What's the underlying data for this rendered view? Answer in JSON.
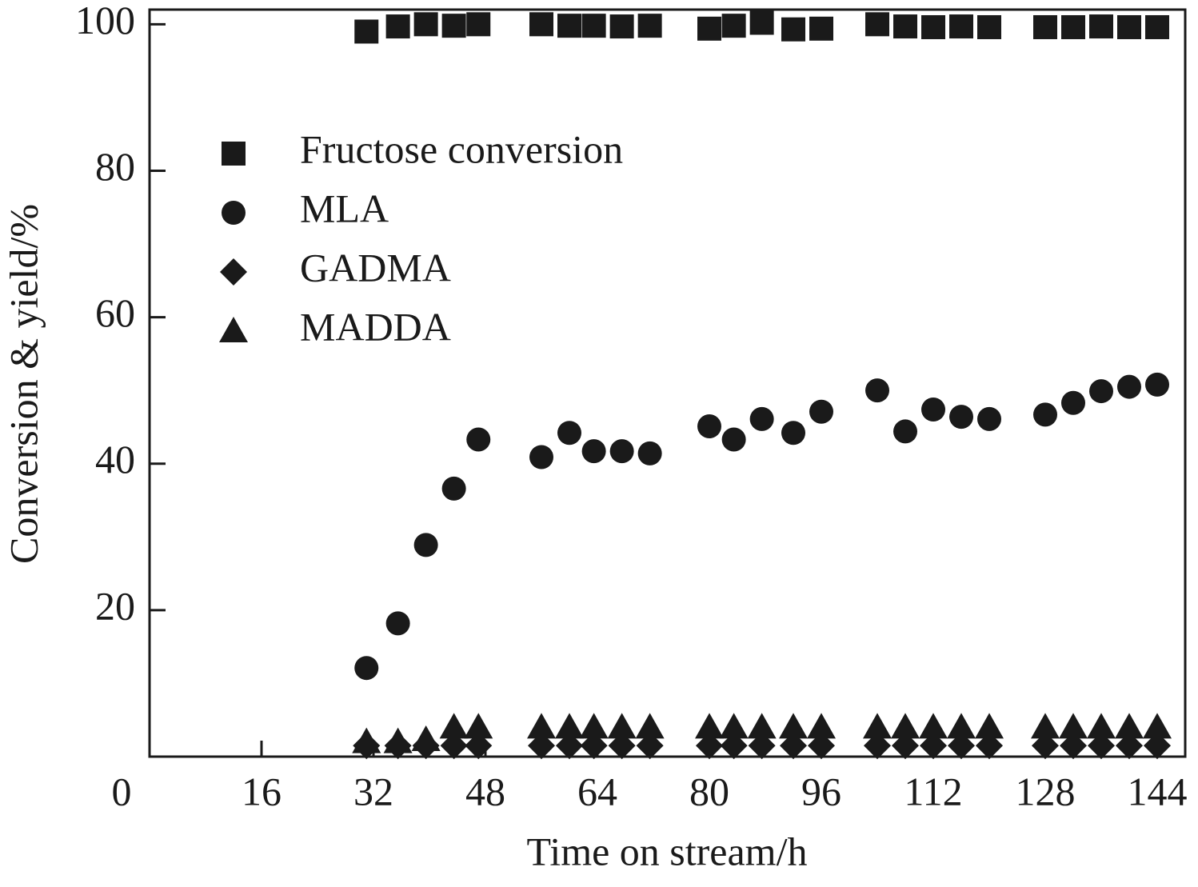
{
  "chart_data": {
    "type": "scatter",
    "x_label": "Time on stream/h",
    "y_label": "Conversion & yield/%",
    "xlim": [
      0,
      148
    ],
    "ylim": [
      0,
      102
    ],
    "xticks": [
      0,
      16,
      32,
      48,
      64,
      80,
      96,
      112,
      128,
      144
    ],
    "yticks": [
      20,
      40,
      60,
      80,
      100
    ],
    "legend": "upper left",
    "x": [
      31,
      35.5,
      39.5,
      43.5,
      47,
      56,
      60,
      63.5,
      67.5,
      71.5,
      80,
      83.5,
      87.5,
      92,
      96,
      104,
      108,
      112,
      116,
      120,
      128,
      132,
      136,
      140,
      144
    ],
    "series": [
      {
        "name": "Fructose conversion",
        "color": "#1a1a1a",
        "marker": "square",
        "values": [
          99,
          99.7,
          100,
          99.8,
          100,
          100,
          99.8,
          99.8,
          99.7,
          99.8,
          99.4,
          99.8,
          100.2,
          99.3,
          99.4,
          100,
          99.7,
          99.6,
          99.7,
          99.6,
          99.6,
          99.6,
          99.7,
          99.6,
          99.6
        ]
      },
      {
        "name": "MLA",
        "color": "#1a1a1a",
        "marker": "circle",
        "values": [
          12.1,
          18.2,
          28.9,
          36.6,
          43.3,
          40.9,
          44.2,
          41.7,
          41.7,
          41.4,
          45.1,
          43.3,
          46.1,
          44.2,
          47.1,
          50,
          44.4,
          47.4,
          46.4,
          46.1,
          46.7,
          48.3,
          49.9,
          50.5,
          50.8
        ]
      },
      {
        "name": "GADMA",
        "color": "#1a1a1a",
        "marker": "diamond",
        "values": [
          1.5,
          1.5,
          1.5,
          1.5,
          1.5,
          1.5,
          1.5,
          1.5,
          1.5,
          1.5,
          1.5,
          1.5,
          1.5,
          1.5,
          1.5,
          1.5,
          1.5,
          1.5,
          1.5,
          1.5,
          1.5,
          1.5,
          1.5,
          1.5,
          1.5
        ]
      },
      {
        "name": "MADDA",
        "color": "#1a1a1a",
        "marker": "triangle",
        "values": [
          2,
          2,
          2.3,
          4,
          4,
          4,
          4,
          4,
          4,
          4,
          4,
          4,
          4,
          4,
          4,
          4,
          4,
          4,
          4,
          4,
          4,
          4,
          4,
          4,
          4
        ]
      }
    ]
  }
}
